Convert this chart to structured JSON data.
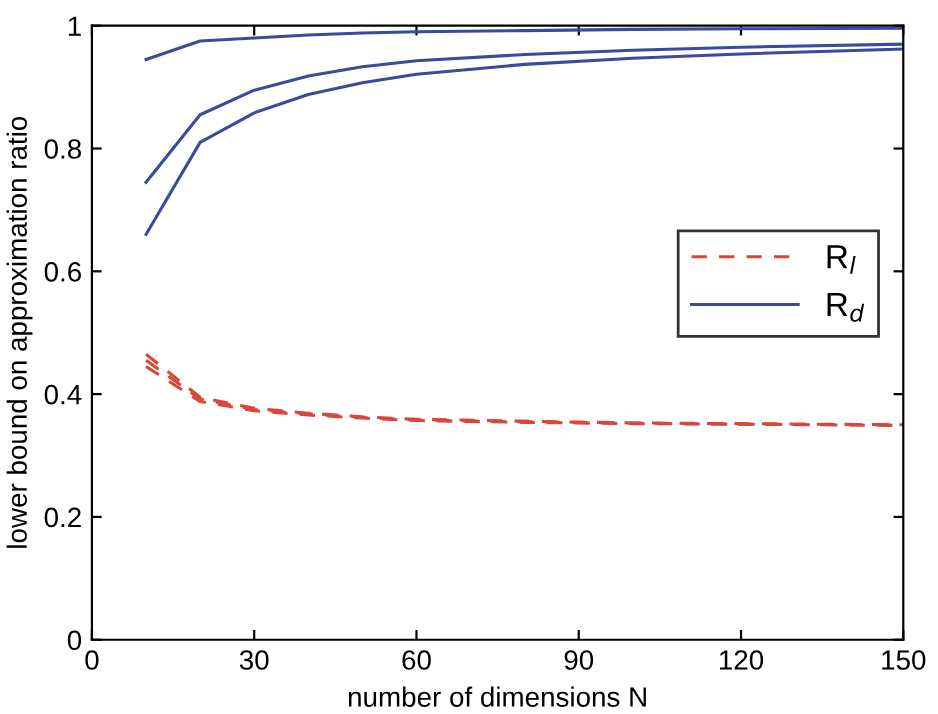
{
  "chart_data": {
    "type": "line",
    "xlabel": "number of dimensions N",
    "ylabel": "lower bound on approximation ratio",
    "x": [
      10,
      20,
      30,
      40,
      50,
      60,
      80,
      100,
      120,
      150
    ],
    "series": [
      {
        "name": "R$_{l}$",
        "color": "#d9473c",
        "line_style": "dashed",
        "values": [
          0.465,
          0.395,
          0.377,
          0.369,
          0.363,
          0.359,
          0.356,
          0.353,
          0.352,
          0.35
        ]
      },
      {
        "color": "#d9473c",
        "line_style": "dashed",
        "values": [
          0.455,
          0.392,
          0.375,
          0.368,
          0.362,
          0.358,
          0.355,
          0.353,
          0.351,
          0.35
        ]
      },
      {
        "color": "#d9473c",
        "line_style": "dashed",
        "values": [
          0.445,
          0.388,
          0.373,
          0.366,
          0.361,
          0.357,
          0.354,
          0.352,
          0.351,
          0.349
        ]
      },
      {
        "name": "R$_{d}$",
        "color": "#3b4a9c",
        "line_style": "solid",
        "values": [
          0.945,
          0.975,
          0.98,
          0.985,
          0.988,
          0.99,
          0.992,
          0.994,
          0.995,
          0.996
        ]
      },
      {
        "color": "#3b4a9c",
        "line_style": "solid",
        "values": [
          0.745,
          0.855,
          0.895,
          0.918,
          0.933,
          0.943,
          0.953,
          0.96,
          0.965,
          0.97
        ]
      },
      {
        "color": "#3b4a9c",
        "line_style": "solid",
        "values": [
          0.66,
          0.81,
          0.858,
          0.888,
          0.907,
          0.921,
          0.937,
          0.947,
          0.954,
          0.962
        ]
      }
    ],
    "xlim": [
      0,
      150
    ],
    "xticks": [
      0,
      30,
      60,
      90,
      120,
      150
    ],
    "ylim": [
      0,
      1
    ],
    "yticks": [
      0,
      0.2,
      0.4,
      0.6,
      0.8,
      1
    ],
    "grid": false,
    "legend": "right",
    "marker": "none"
  }
}
